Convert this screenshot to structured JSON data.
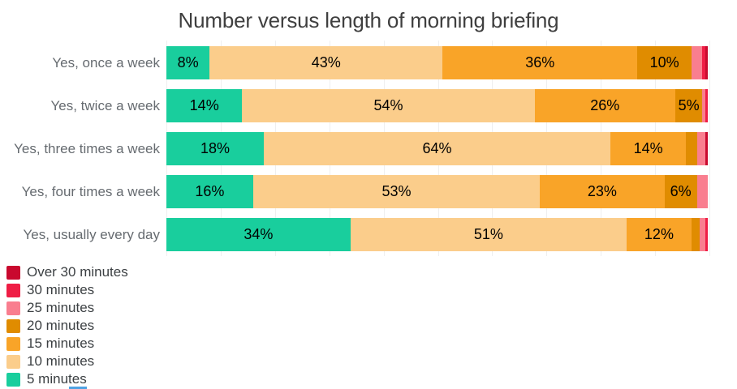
{
  "page": {
    "background": "#ffffff",
    "title_color": "#3f3f3f",
    "category_label_color": "#666b70",
    "gridline_color": "#efefef"
  },
  "chart_data": {
    "type": "bar",
    "variant": "horizontal-stacked",
    "title": "Number versus length of morning briefing",
    "categories": [
      "Yes, once a week",
      "Yes, twice a week",
      "Yes, three times a week",
      "Yes, four times a week",
      "Yes, usually every day"
    ],
    "series": [
      {
        "name": "5 minutes",
        "color": "#19ce9d",
        "values": [
          8,
          14,
          18,
          16,
          34
        ]
      },
      {
        "name": "10 minutes",
        "color": "#fbcd8b",
        "values": [
          43,
          54,
          64,
          53,
          51
        ]
      },
      {
        "name": "15 minutes",
        "color": "#f9a428",
        "values": [
          36,
          26,
          14,
          23,
          12
        ]
      },
      {
        "name": "20 minutes",
        "color": "#e08c00",
        "values": [
          10,
          5,
          2,
          6,
          1.5
        ]
      },
      {
        "name": "25 minutes",
        "color": "#f97e8f",
        "values": [
          2,
          0.5,
          1.5,
          2,
          1
        ]
      },
      {
        "name": "30 minutes",
        "color": "#ef1d45",
        "values": [
          0.5,
          0.5,
          0,
          0,
          0.5
        ]
      },
      {
        "name": "Over 30 minutes",
        "color": "#c9092e",
        "values": [
          0.5,
          0,
          0.5,
          0,
          0
        ]
      }
    ],
    "value_unit": "%",
    "xlim": [
      0,
      100
    ],
    "gridline_interval": 10,
    "data_label_threshold": 5,
    "legend_position": "bottom-left",
    "legend_order": "reversed"
  }
}
